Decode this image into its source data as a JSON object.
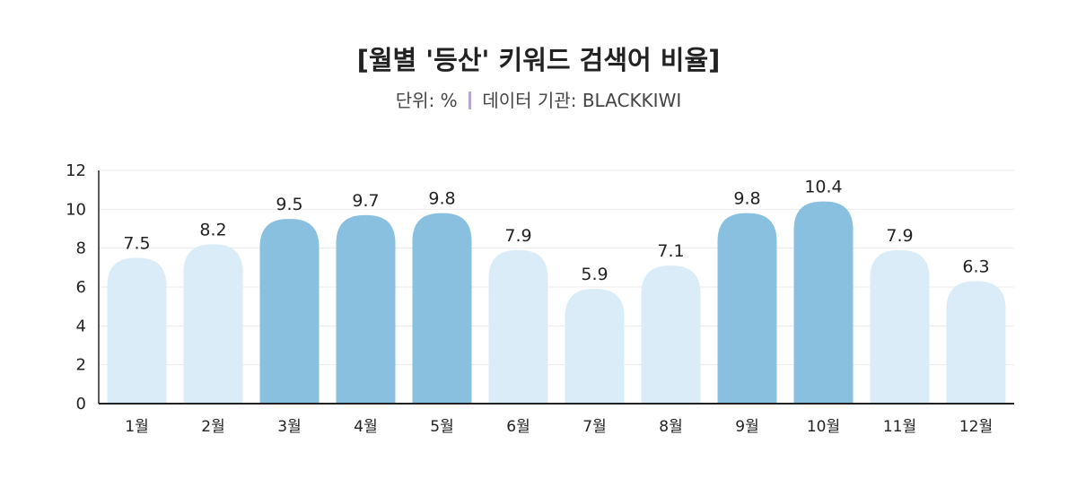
{
  "title": "[월별 '등산' 키워드 검색어 비율]",
  "subtitle": {
    "unit": "단위: %",
    "source": "데이터 기관: BLACKKIWI",
    "separator_color": "#b8a4d0"
  },
  "colors": {
    "highlight_bar": "#89c0df",
    "normal_bar": "#d9ecf7",
    "axis": "#222222",
    "grid": "#ececec"
  },
  "chart_data": {
    "type": "bar",
    "title": "[월별 '등산' 키워드 검색어 비율]",
    "xlabel": "",
    "ylabel": "",
    "categories": [
      "1월",
      "2월",
      "3월",
      "4월",
      "5월",
      "6월",
      "7월",
      "8월",
      "9월",
      "10월",
      "11월",
      "12월"
    ],
    "values": [
      7.5,
      8.2,
      9.5,
      9.7,
      9.8,
      7.9,
      5.9,
      7.1,
      9.8,
      10.4,
      7.9,
      6.3
    ],
    "data_labels": [
      "7.5",
      "8.2",
      "9.5",
      "9.7",
      "9.8",
      "7.9",
      "5.9",
      "7.1",
      "9.8",
      "10.4",
      "7.9",
      "6.3"
    ],
    "highlighted": [
      false,
      false,
      true,
      true,
      true,
      false,
      false,
      false,
      true,
      true,
      false,
      false
    ],
    "ylim": [
      0,
      12
    ],
    "yticks": [
      0,
      2,
      4,
      6,
      8,
      10,
      12
    ],
    "grid": true,
    "legend": "none"
  }
}
